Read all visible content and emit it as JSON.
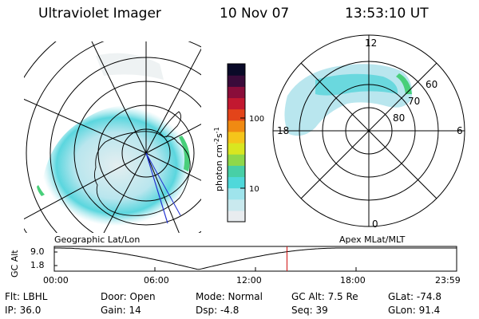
{
  "header": {
    "instrument": "Ultraviolet Imager",
    "date": "10 Nov 07",
    "time": "13:53:10 UT"
  },
  "panels": {
    "left_label": "Geographic Lat/Lon",
    "right_label": "Apex MLat/MLT"
  },
  "colorbar": {
    "title": "photon cm",
    "title_exp1": "-2",
    "title_s": "s",
    "title_exp2": "-1",
    "tick_100": "100",
    "tick_10": "10",
    "colors": [
      "#e8ecef",
      "#c9e9ee",
      "#9fe4ec",
      "#4fd8da",
      "#48cfa6",
      "#8fd84a",
      "#d9e620",
      "#f5c51a",
      "#f08a12",
      "#e3441a",
      "#c21830",
      "#8a0d3a",
      "#3a0b3a",
      "#0a0a28"
    ]
  },
  "polar_labels": {
    "mlt_12": "12",
    "mlt_18": "18",
    "mlt_6": "6",
    "mlt_0": "0",
    "lat_60": "60",
    "lat_70": "70",
    "lat_80": "80"
  },
  "timeline": {
    "axis_label": "GC Alt",
    "y_top": "9.0",
    "y_bottom": "1.8",
    "ticks": [
      "00:00",
      "06:00",
      "12:00",
      "18:00",
      "23:59"
    ],
    "marker_time": "13:53"
  },
  "info": {
    "flt": "Flt: LBHL",
    "ip": "IP: 36.0",
    "door": "Door: Open",
    "gain": "Gain: 14",
    "mode": "Mode: Normal",
    "dsp": "Dsp:    -4.8",
    "gcalt": "GC Alt: 7.5 Re",
    "seq": "Seq: 39",
    "glat": "GLat: -74.8",
    "glon": "GLon:  91.4"
  }
}
